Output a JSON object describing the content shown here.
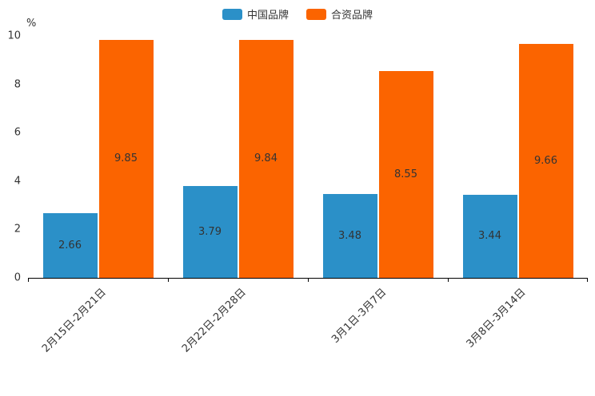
{
  "chart_data": {
    "type": "bar",
    "title": "",
    "xlabel": "",
    "ylabel": "%",
    "categories": [
      "2月15日-2月21日",
      "2月22日-2月28日",
      "3月1日-3月7日",
      "3月8日-3月14日"
    ],
    "series": [
      {
        "name": "中国品牌",
        "color": "#2b90c8",
        "values": [
          2.66,
          3.79,
          3.48,
          3.44
        ]
      },
      {
        "name": "合资品牌",
        "color": "#fb6400",
        "values": [
          9.85,
          9.84,
          8.55,
          9.66
        ]
      }
    ],
    "ylim": [
      0,
      10
    ],
    "yticks": [
      0,
      2,
      4,
      6,
      8,
      10
    ],
    "grid": false,
    "legend_position": "top",
    "value_labels": [
      "2.66",
      "3.79",
      "3.48",
      "3.44",
      "9.85",
      "9.84",
      "8.55",
      "9.66"
    ]
  }
}
